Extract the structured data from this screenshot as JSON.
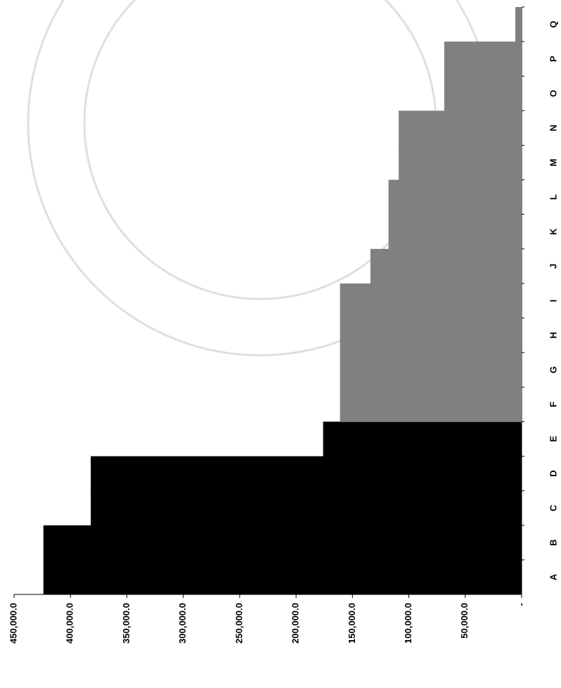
{
  "chart_data": {
    "type": "bar",
    "orientation": "horizontal",
    "categories": [
      "A",
      "B",
      "C",
      "D",
      "E",
      "F",
      "G",
      "H",
      "I",
      "J",
      "K",
      "L",
      "M",
      "N",
      "O",
      "P",
      "Q"
    ],
    "series": [
      {
        "color": "#000000",
        "values": [
          424000,
          424000,
          382000,
          382000,
          176000,
          null,
          null,
          null,
          null,
          null,
          null,
          null,
          null,
          null,
          null,
          null,
          null
        ]
      },
      {
        "color": "#808080",
        "values": [
          null,
          null,
          null,
          null,
          null,
          161000,
          161000,
          161000,
          161000,
          134000,
          118000,
          118000,
          109000,
          109000,
          68600,
          68600,
          5600
        ]
      }
    ],
    "xlim": [
      0,
      450000
    ],
    "xticks": [
      {
        "value": 450000,
        "label": "450,000.0"
      },
      {
        "value": 400000,
        "label": "400,000.0"
      },
      {
        "value": 350000,
        "label": "350,000.0"
      },
      {
        "value": 300000,
        "label": "300,000.0"
      },
      {
        "value": 250000,
        "label": "250,000.0"
      },
      {
        "value": 200000,
        "label": "200,000.0"
      },
      {
        "value": 150000,
        "label": "150,000.0"
      },
      {
        "value": 100000,
        "label": "100,000.0"
      },
      {
        "value": 50000,
        "label": "50,000.0"
      },
      {
        "value": 0,
        "label": "-"
      }
    ],
    "grid": false
  }
}
